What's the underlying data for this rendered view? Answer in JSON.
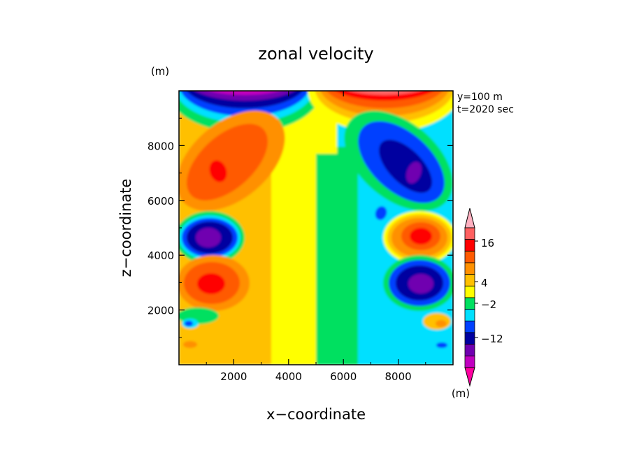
{
  "chart_data": {
    "type": "heatmap",
    "title": "zonal velocity",
    "xlabel": "x−coordinate",
    "ylabel": "z−coordinate",
    "x_unit": "(m)",
    "y_unit": "(m)",
    "xlim": [
      0,
      10000
    ],
    "ylim": [
      0,
      10000
    ],
    "x_ticks": [
      2000,
      4000,
      6000,
      8000
    ],
    "y_ticks": [
      2000,
      4000,
      6000,
      8000
    ],
    "x_tick_labels": [
      "2000",
      "4000",
      "6000",
      "8000"
    ],
    "y_tick_labels": [
      "2000",
      "4000",
      "6000",
      "8000"
    ],
    "annotations": [
      "y=100 m",
      "t=2020 sec"
    ],
    "colorbar": {
      "unit_label": "(m)",
      "labels": [
        "16",
        "4",
        "−2",
        "−12"
      ],
      "colors": [
        "#ff00a0",
        "#c000c0",
        "#7000b0",
        "#0000a0",
        "#0040ff",
        "#00e0ff",
        "#00e060",
        "#ffff00",
        "#ffc000",
        "#ff9000",
        "#ff5a00",
        "#ff0000",
        "#ff6060",
        "#ffb0c0"
      ]
    },
    "features": [
      {
        "x": 1300,
        "z": 7000,
        "value": 14
      },
      {
        "x": 1300,
        "z": 3000,
        "value": 14
      },
      {
        "x": 1300,
        "z": 4700,
        "value": -14
      },
      {
        "x": 8700,
        "z": 7000,
        "value": -14
      },
      {
        "x": 8700,
        "z": 3000,
        "value": -14
      },
      {
        "x": 8700,
        "z": 4700,
        "value": 14
      },
      {
        "x": 2500,
        "z": 9600,
        "value": -20
      },
      {
        "x": 7500,
        "z": 9600,
        "value": 20
      }
    ]
  }
}
